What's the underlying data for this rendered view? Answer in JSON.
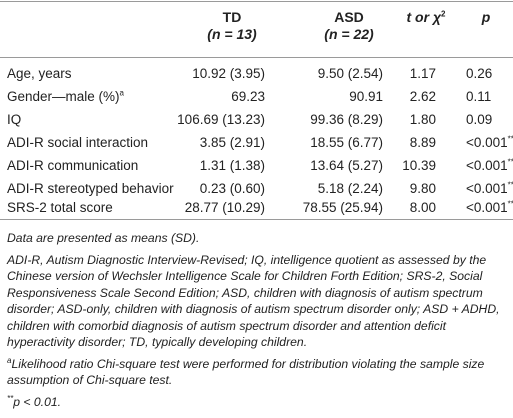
{
  "header": {
    "col1_label": "TD",
    "col1_n": "(n = 13)",
    "col2_label": "ASD",
    "col2_n": "(n = 22)",
    "col3_label": "t or χ",
    "col3_sup": "2",
    "col4_label": "p"
  },
  "rows": [
    {
      "label": "Age, years",
      "sup": "",
      "td": "10.92 (3.95)",
      "asd": "9.50 (2.54)",
      "stat": "1.17",
      "p": "0.26",
      "p_sup": ""
    },
    {
      "label": "Gender—male (%)",
      "sup": "a",
      "td": "69.23",
      "asd": "90.91",
      "stat": "2.62",
      "p": "0.11",
      "p_sup": ""
    },
    {
      "label": "IQ",
      "sup": "",
      "td": "106.69 (13.23)",
      "asd": "99.36 (8.29)",
      "stat": "1.80",
      "p": "0.09",
      "p_sup": ""
    },
    {
      "label": "ADI-R social interaction",
      "sup": "",
      "td": "3.85 (2.91)",
      "asd": "18.55 (6.77)",
      "stat": "8.89",
      "p": "<0.001",
      "p_sup": "**"
    },
    {
      "label": "ADI-R communication",
      "sup": "",
      "td": "1.31 (1.38)",
      "asd": "13.64 (5.27)",
      "stat": "10.39",
      "p": "<0.001",
      "p_sup": "**"
    },
    {
      "label": "ADI-R stereotyped behavior",
      "sup": "",
      "td": "0.23 (0.60)",
      "asd": "5.18 (2.24)",
      "stat": "9.80",
      "p": "<0.001",
      "p_sup": "**"
    },
    {
      "label": "SRS-2 total score",
      "sup": "",
      "td": "28.77 (10.29)",
      "asd": "78.55 (25.94)",
      "stat": "8.00",
      "p": "<0.001",
      "p_sup": "**"
    }
  ],
  "notes": {
    "n1": "Data are presented as means (SD).",
    "n2": "ADI-R, Autism Diagnostic Interview-Revised; IQ, intelligence quotient as assessed by the Chinese version of Wechsler Intelligence Scale for Children Forth Edition; SRS-2, Social Responsiveness Scale Second Edition; ASD, children with diagnosis of autism spectrum disorder; ASD-only, children with diagnosis of autism spectrum disorder only; ASD + ADHD, children with comorbid diagnosis of autism spectrum disorder and attention deficit hyperactivity disorder; TD, typically developing children.",
    "n3_sup": "a",
    "n3": "Likelihood ratio Chi-square test were performed for distribution violating the sample size assumption of Chi-square test.",
    "n4_sup": "**",
    "n4": "p < 0.01."
  }
}
